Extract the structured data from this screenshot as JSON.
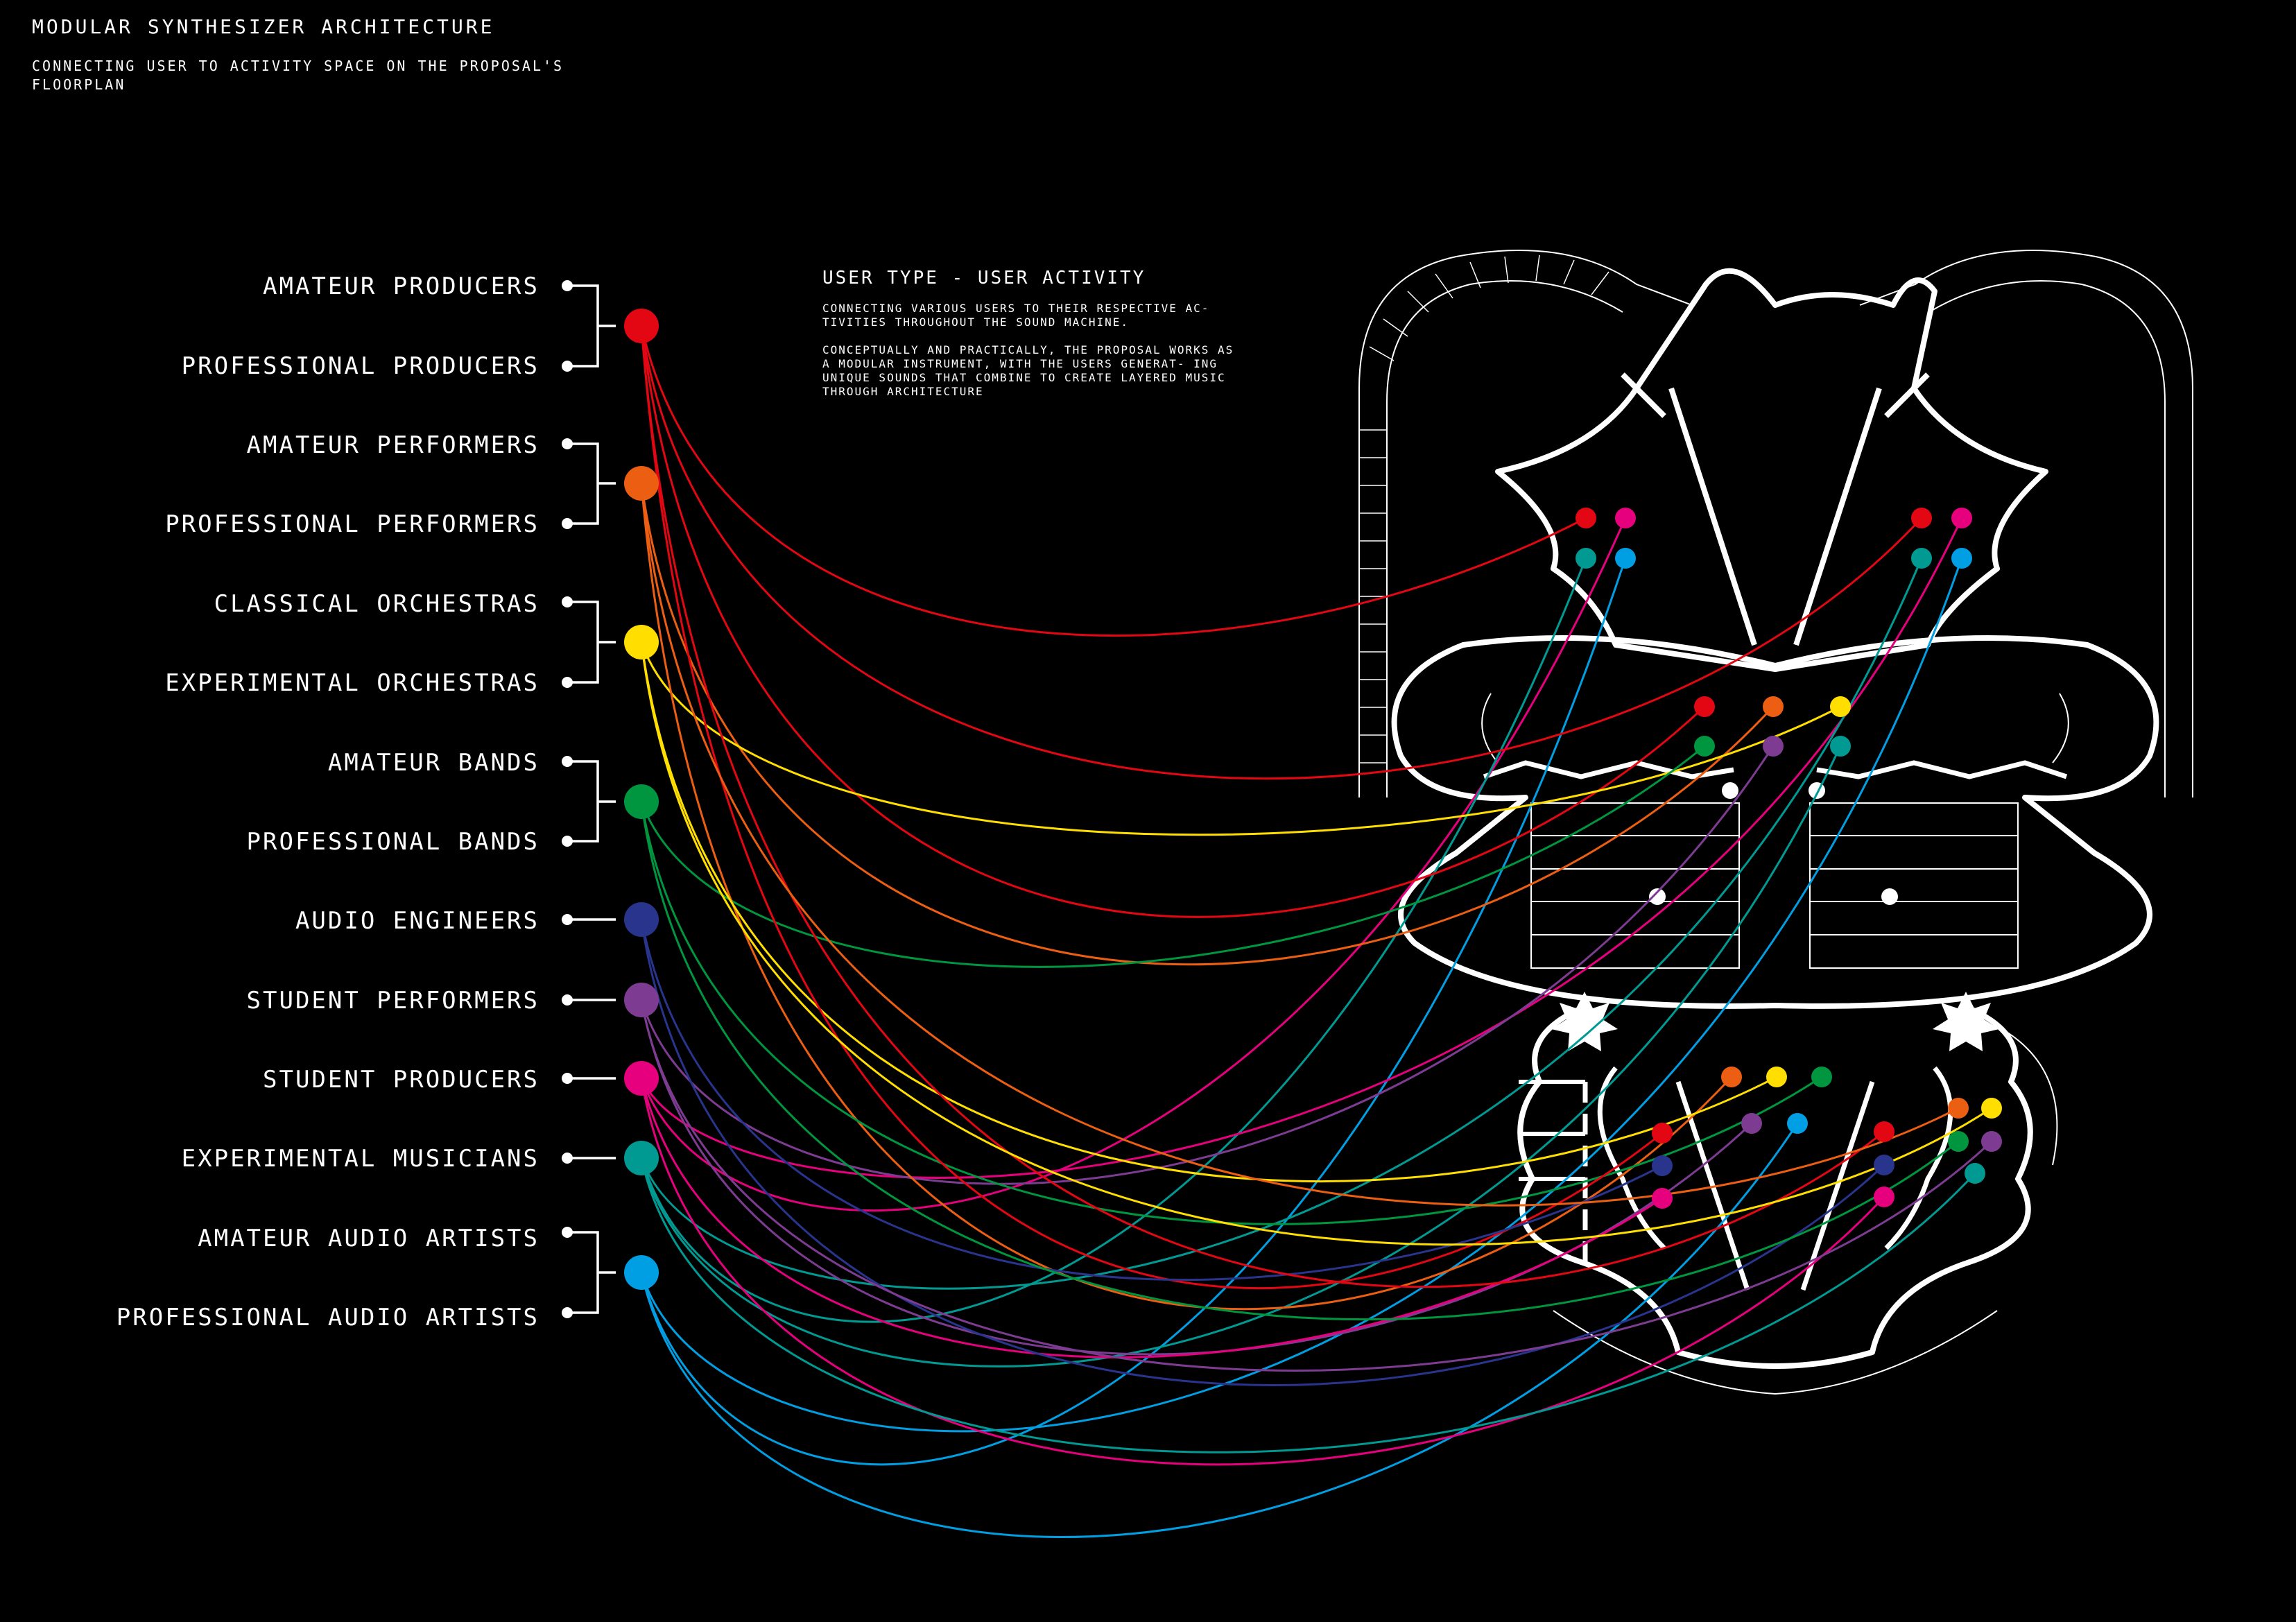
{
  "header": {
    "title": "MODULAR SYNTHESIZER ARCHITECTURE",
    "subtitle": "CONNECTING USER TO ACTIVITY SPACE ON THE PROPOSAL'S FLOORPLAN"
  },
  "info": {
    "heading": "USER TYPE - USER ACTIVITY",
    "para1": "CONNECTING VARIOUS USERS TO THEIR RESPECTIVE AC- TIVITIES THROUGHOUT THE SOUND MACHINE.",
    "para2": "CONCEPTUALLY AND PRACTICALLY, THE PROPOSAL WORKS AS A MODULAR INSTRUMENT, WITH THE USERS GENERAT- ING UNIQUE SOUNDS THAT COMBINE TO CREATE LAYERED MUSIC THROUGH ARCHITECTURE"
  },
  "users": [
    {
      "label": "AMATEUR PRODUCERS"
    },
    {
      "label": "PROFESSIONAL PRODUCERS"
    },
    {
      "label": "AMATEUR PERFORMERS"
    },
    {
      "label": "PROFESSIONAL PERFORMERS"
    },
    {
      "label": "CLASSICAL ORCHESTRAS"
    },
    {
      "label": "EXPERIMENTAL ORCHESTRAS"
    },
    {
      "label": "AMATEUR BANDS"
    },
    {
      "label": "PROFESSIONAL BANDS"
    },
    {
      "label": "AUDIO ENGINEERS"
    },
    {
      "label": "STUDENT PERFORMERS"
    },
    {
      "label": "STUDENT PRODUCERS"
    },
    {
      "label": "EXPERIMENTAL MUSICIANS"
    },
    {
      "label": "AMATEUR AUDIO ARTISTS"
    },
    {
      "label": "PROFESSIONAL AUDIO ARTISTS"
    }
  ],
  "groups": [
    {
      "id": "producers",
      "color": "#e30613"
    },
    {
      "id": "performers",
      "color": "#ec5f13"
    },
    {
      "id": "orchestras",
      "color": "#ffde00"
    },
    {
      "id": "bands",
      "color": "#009640"
    },
    {
      "id": "audio-engineers",
      "color": "#29348d"
    },
    {
      "id": "student-performers",
      "color": "#7d3c91"
    },
    {
      "id": "student-producers",
      "color": "#e6007e"
    },
    {
      "id": "experimental-musicians",
      "color": "#009a93"
    },
    {
      "id": "audio-artists",
      "color": "#009fe3"
    }
  ],
  "colors": {
    "background": "#000000",
    "ink": "#ffffff"
  }
}
